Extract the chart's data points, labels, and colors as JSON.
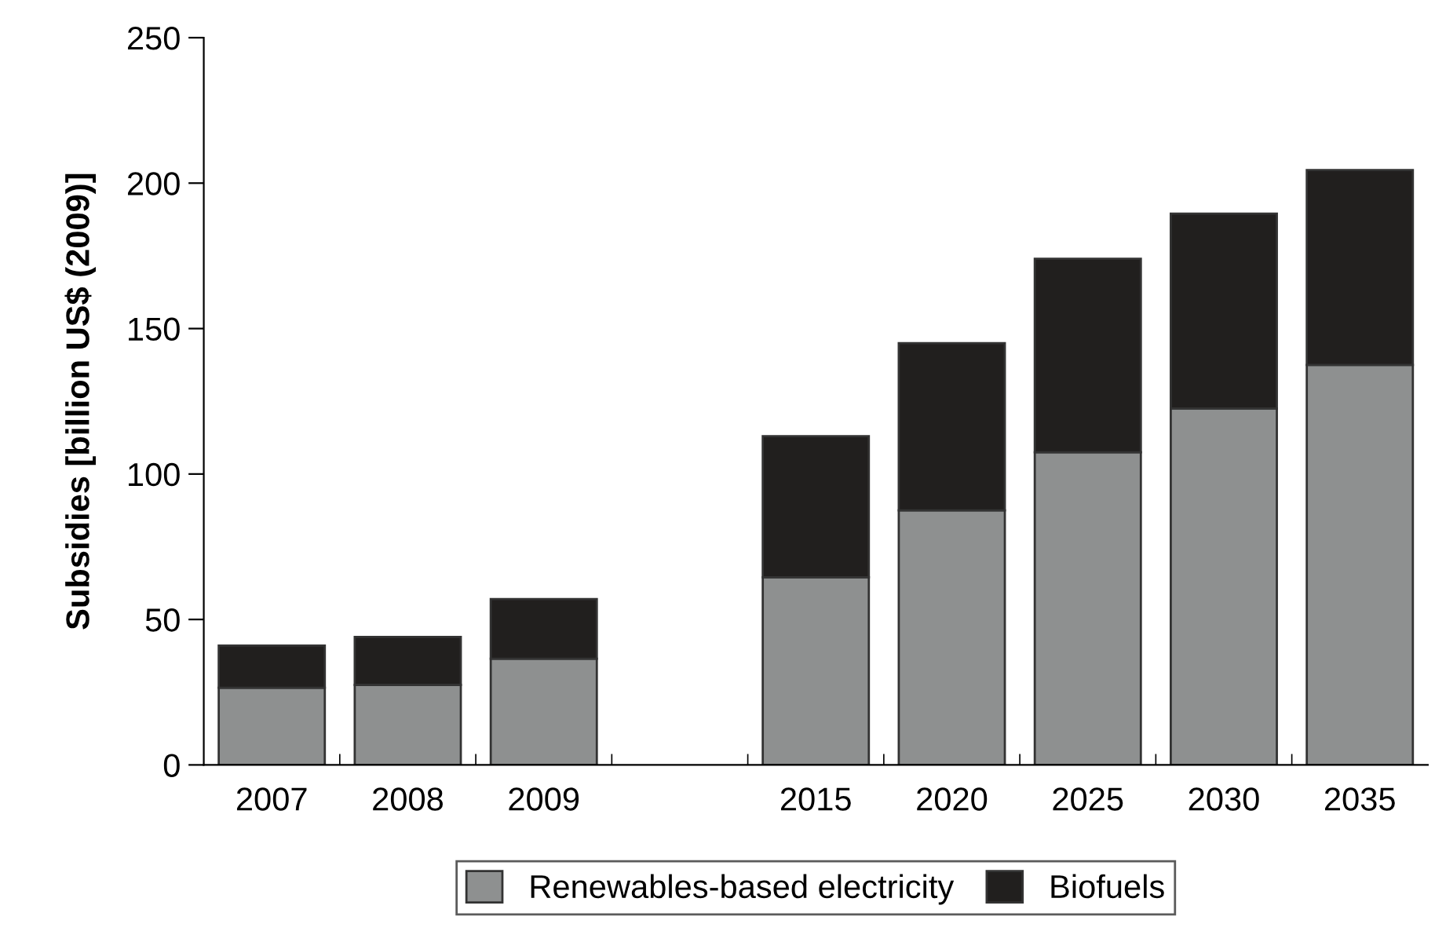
{
  "chart_data": {
    "type": "bar",
    "ylabel": "Subsidies [billion US$ (2009)]",
    "categories": [
      "2007",
      "2008",
      "2009",
      null,
      "2015",
      "2020",
      "2025",
      "2030",
      "2035"
    ],
    "stacked": true,
    "series": [
      {
        "name": "Renewables-based electricity",
        "color": "#8e9090",
        "values": [
          26.5,
          27.5,
          36.5,
          null,
          64.5,
          87.5,
          107.5,
          122.5,
          137.5
        ]
      },
      {
        "name": "Biofuels",
        "color": "#211f1e",
        "values": [
          14.5,
          16.5,
          20.5,
          null,
          48.5,
          57.5,
          66.5,
          67,
          67
        ]
      }
    ],
    "ylim": [
      0,
      250
    ],
    "yticks": [
      0,
      50,
      100,
      150,
      200,
      250
    ],
    "grid": false,
    "legend": "bottom"
  }
}
